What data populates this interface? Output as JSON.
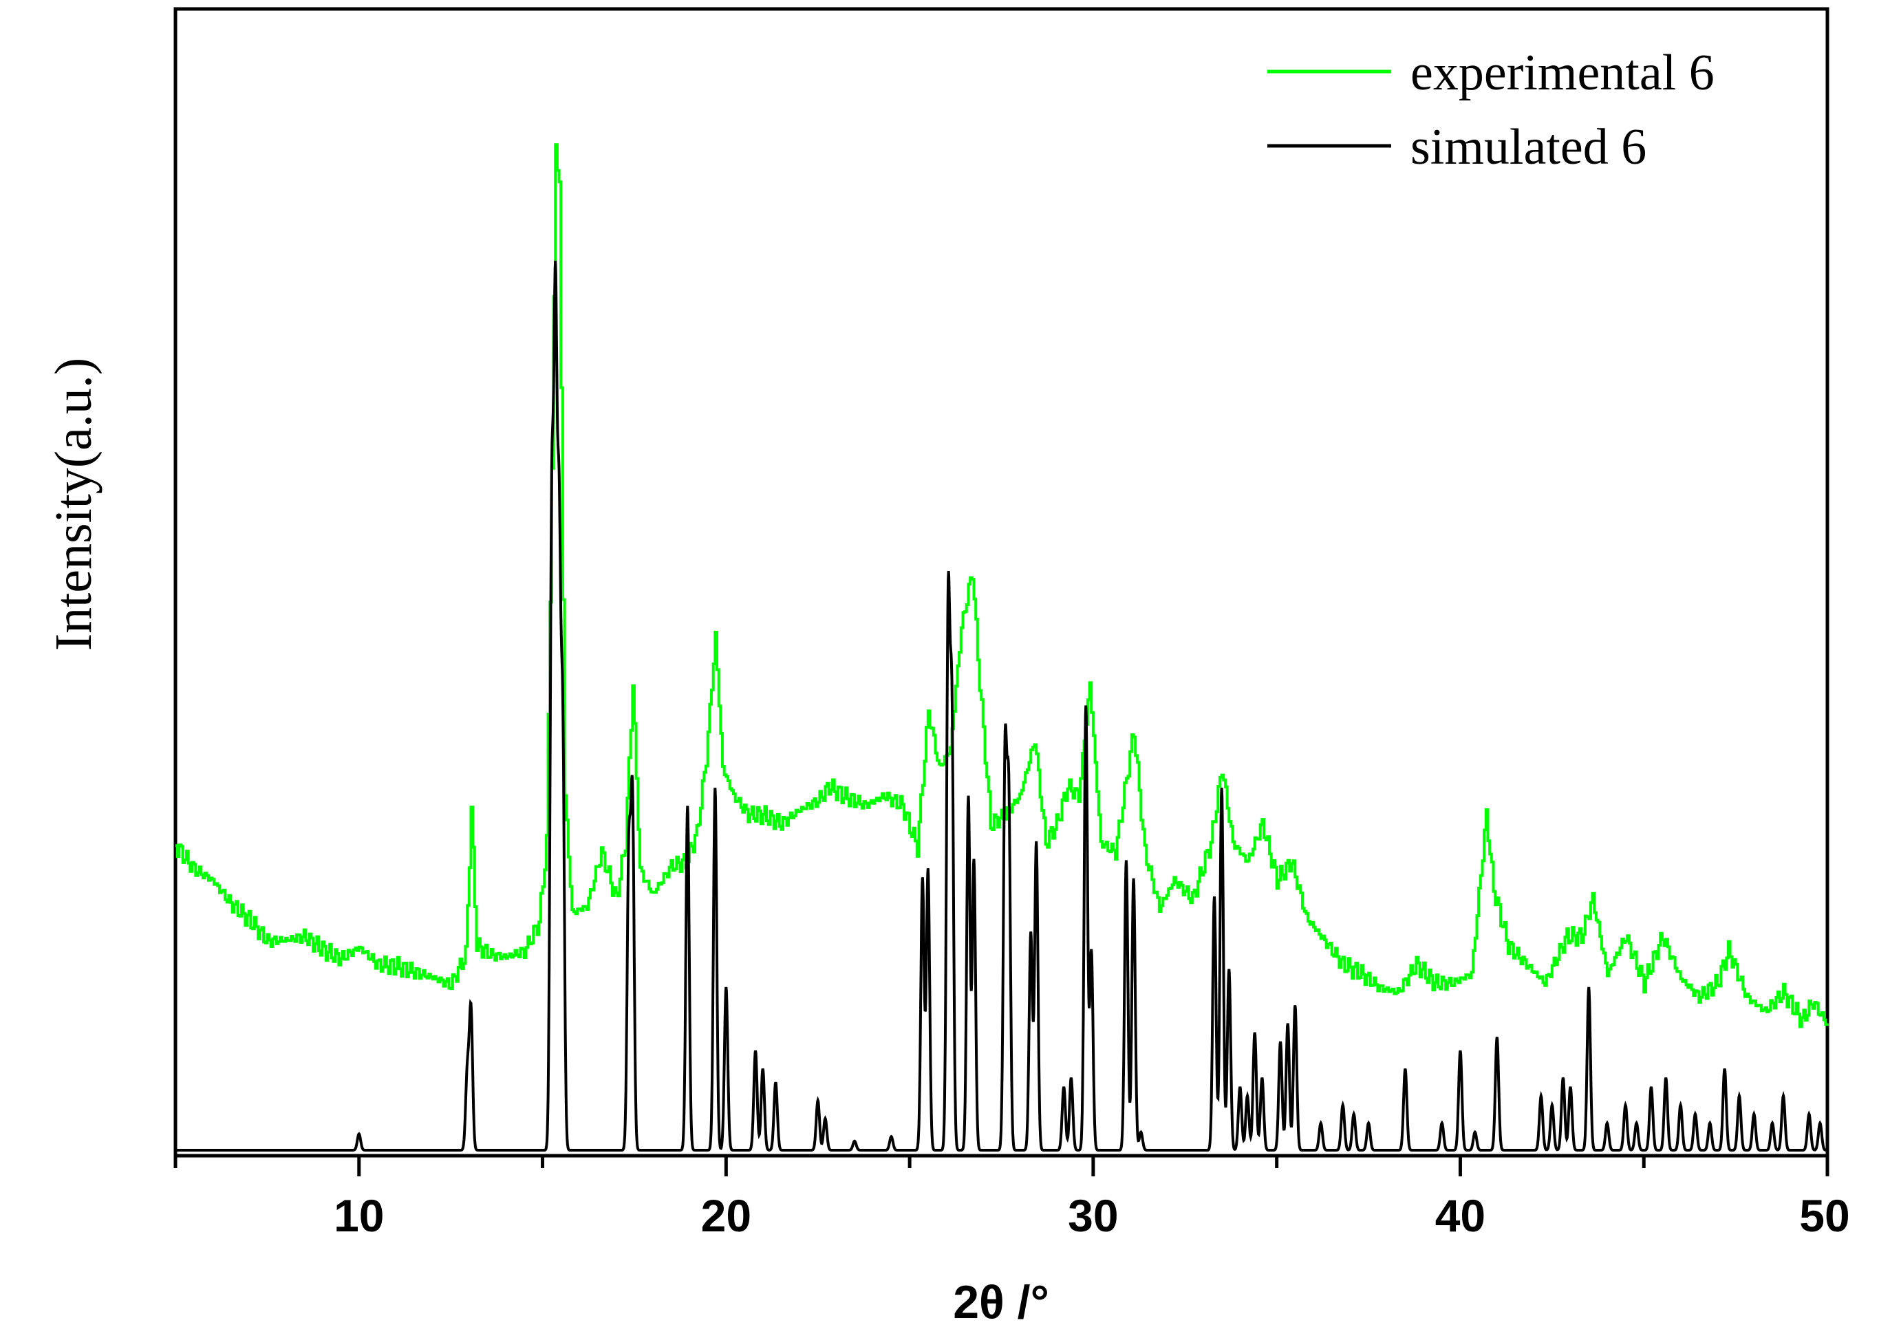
{
  "chart_data": {
    "type": "line",
    "xlabel": "2θ /°",
    "ylabel": "Intensity(a.u.)",
    "xlim": [
      5,
      50
    ],
    "ylim": [
      0,
      1
    ],
    "x_ticks": [
      10,
      20,
      30,
      40,
      50
    ],
    "y_ticks_shown": false,
    "grid": false,
    "legend_position": "top-right",
    "series": [
      {
        "name": "experimental 6",
        "color": "#00ff00",
        "points": [
          [
            5.0,
            0.247
          ],
          [
            5.5,
            0.222
          ],
          [
            6.0,
            0.21
          ],
          [
            6.5,
            0.185
          ],
          [
            7.0,
            0.168
          ],
          [
            7.5,
            0.145
          ],
          [
            8.0,
            0.146
          ],
          [
            8.5,
            0.15
          ],
          [
            9.0,
            0.136
          ],
          [
            9.5,
            0.126
          ],
          [
            10.0,
            0.138
          ],
          [
            10.5,
            0.12
          ],
          [
            11.0,
            0.118
          ],
          [
            11.5,
            0.112
          ],
          [
            12.0,
            0.106
          ],
          [
            12.5,
            0.098
          ],
          [
            12.9,
            0.13
          ],
          [
            13.05,
            0.285
          ],
          [
            13.2,
            0.14
          ],
          [
            13.6,
            0.13
          ],
          [
            14.0,
            0.128
          ],
          [
            14.5,
            0.134
          ],
          [
            14.9,
            0.165
          ],
          [
            15.1,
            0.25
          ],
          [
            15.25,
            0.65
          ],
          [
            15.35,
            1.0
          ],
          [
            15.45,
            0.95
          ],
          [
            15.6,
            0.3
          ],
          [
            15.8,
            0.175
          ],
          [
            16.2,
            0.182
          ],
          [
            16.6,
            0.24
          ],
          [
            17.0,
            0.19
          ],
          [
            17.25,
            0.25
          ],
          [
            17.45,
            0.42
          ],
          [
            17.65,
            0.22
          ],
          [
            18.0,
            0.195
          ],
          [
            18.5,
            0.225
          ],
          [
            18.9,
            0.23
          ],
          [
            19.2,
            0.26
          ],
          [
            19.45,
            0.34
          ],
          [
            19.7,
            0.47
          ],
          [
            19.9,
            0.33
          ],
          [
            20.2,
            0.3
          ],
          [
            20.6,
            0.28
          ],
          [
            21.0,
            0.28
          ],
          [
            21.5,
            0.27
          ],
          [
            22.0,
            0.285
          ],
          [
            22.5,
            0.295
          ],
          [
            22.8,
            0.31
          ],
          [
            23.2,
            0.3
          ],
          [
            23.8,
            0.29
          ],
          [
            24.3,
            0.3
          ],
          [
            24.8,
            0.29
          ],
          [
            25.2,
            0.245
          ],
          [
            25.5,
            0.39
          ],
          [
            25.8,
            0.33
          ],
          [
            26.1,
            0.35
          ],
          [
            26.4,
            0.48
          ],
          [
            26.7,
            0.54
          ],
          [
            26.9,
            0.42
          ],
          [
            27.2,
            0.27
          ],
          [
            27.6,
            0.28
          ],
          [
            28.0,
            0.3
          ],
          [
            28.4,
            0.36
          ],
          [
            28.7,
            0.25
          ],
          [
            29.0,
            0.27
          ],
          [
            29.3,
            0.31
          ],
          [
            29.6,
            0.3
          ],
          [
            29.9,
            0.42
          ],
          [
            30.2,
            0.25
          ],
          [
            30.6,
            0.24
          ],
          [
            31.1,
            0.37
          ],
          [
            31.4,
            0.24
          ],
          [
            31.8,
            0.18
          ],
          [
            32.2,
            0.21
          ],
          [
            32.7,
            0.19
          ],
          [
            33.2,
            0.25
          ],
          [
            33.5,
            0.33
          ],
          [
            33.8,
            0.25
          ],
          [
            34.2,
            0.23
          ],
          [
            34.6,
            0.27
          ],
          [
            35.0,
            0.21
          ],
          [
            35.4,
            0.23
          ],
          [
            35.8,
            0.17
          ],
          [
            36.2,
            0.15
          ],
          [
            36.8,
            0.12
          ],
          [
            37.3,
            0.11
          ],
          [
            37.8,
            0.095
          ],
          [
            38.3,
            0.09
          ],
          [
            38.8,
            0.12
          ],
          [
            39.3,
            0.1
          ],
          [
            39.8,
            0.1
          ],
          [
            40.3,
            0.11
          ],
          [
            40.7,
            0.28
          ],
          [
            40.9,
            0.2
          ],
          [
            41.3,
            0.14
          ],
          [
            41.8,
            0.12
          ],
          [
            42.3,
            0.1
          ],
          [
            42.9,
            0.15
          ],
          [
            43.3,
            0.15
          ],
          [
            43.6,
            0.19
          ],
          [
            44.0,
            0.11
          ],
          [
            44.5,
            0.15
          ],
          [
            45.0,
            0.1
          ],
          [
            45.5,
            0.15
          ],
          [
            46.0,
            0.105
          ],
          [
            46.5,
            0.085
          ],
          [
            47.0,
            0.1
          ],
          [
            47.3,
            0.135
          ],
          [
            47.8,
            0.085
          ],
          [
            48.3,
            0.07
          ],
          [
            48.8,
            0.09
          ],
          [
            49.3,
            0.06
          ],
          [
            49.6,
            0.08
          ],
          [
            50.0,
            0.055
          ]
        ]
      },
      {
        "name": "simulated 6",
        "color": "#000000",
        "baseline": 0.0,
        "peaks": [
          [
            10.0,
            0.018
          ],
          [
            12.95,
            0.085
          ],
          [
            13.05,
            0.155
          ],
          [
            15.25,
            0.68
          ],
          [
            15.35,
            0.87
          ],
          [
            15.45,
            0.64
          ],
          [
            15.55,
            0.45
          ],
          [
            17.35,
            0.32
          ],
          [
            17.45,
            0.38
          ],
          [
            18.95,
            0.38
          ],
          [
            19.7,
            0.4
          ],
          [
            20.0,
            0.18
          ],
          [
            20.8,
            0.11
          ],
          [
            21.0,
            0.09
          ],
          [
            21.35,
            0.075
          ],
          [
            22.5,
            0.055
          ],
          [
            22.7,
            0.035
          ],
          [
            23.5,
            0.01
          ],
          [
            24.5,
            0.015
          ],
          [
            25.35,
            0.3
          ],
          [
            25.5,
            0.31
          ],
          [
            26.05,
            0.59
          ],
          [
            26.15,
            0.47
          ],
          [
            26.6,
            0.39
          ],
          [
            26.75,
            0.32
          ],
          [
            27.6,
            0.43
          ],
          [
            27.7,
            0.38
          ],
          [
            28.3,
            0.24
          ],
          [
            28.45,
            0.34
          ],
          [
            29.2,
            0.07
          ],
          [
            29.4,
            0.08
          ],
          [
            29.8,
            0.49
          ],
          [
            29.95,
            0.22
          ],
          [
            30.9,
            0.32
          ],
          [
            31.1,
            0.3
          ],
          [
            31.3,
            0.02
          ],
          [
            33.3,
            0.28
          ],
          [
            33.5,
            0.4
          ],
          [
            33.7,
            0.2
          ],
          [
            34.0,
            0.07
          ],
          [
            34.2,
            0.06
          ],
          [
            34.4,
            0.13
          ],
          [
            34.6,
            0.08
          ],
          [
            35.1,
            0.12
          ],
          [
            35.3,
            0.14
          ],
          [
            35.5,
            0.16
          ],
          [
            36.2,
            0.03
          ],
          [
            36.8,
            0.05
          ],
          [
            37.1,
            0.04
          ],
          [
            37.5,
            0.03
          ],
          [
            38.5,
            0.09
          ],
          [
            39.5,
            0.03
          ],
          [
            40.0,
            0.11
          ],
          [
            40.4,
            0.02
          ],
          [
            41.0,
            0.125
          ],
          [
            42.2,
            0.06
          ],
          [
            42.5,
            0.05
          ],
          [
            42.8,
            0.08
          ],
          [
            43.0,
            0.07
          ],
          [
            43.5,
            0.18
          ],
          [
            44.0,
            0.03
          ],
          [
            44.5,
            0.05
          ],
          [
            44.8,
            0.03
          ],
          [
            45.2,
            0.07
          ],
          [
            45.6,
            0.08
          ],
          [
            46.0,
            0.05
          ],
          [
            46.4,
            0.04
          ],
          [
            46.8,
            0.03
          ],
          [
            47.2,
            0.09
          ],
          [
            47.6,
            0.06
          ],
          [
            48.0,
            0.04
          ],
          [
            48.5,
            0.03
          ],
          [
            48.8,
            0.06
          ],
          [
            49.5,
            0.04
          ],
          [
            49.8,
            0.03
          ]
        ]
      }
    ]
  }
}
